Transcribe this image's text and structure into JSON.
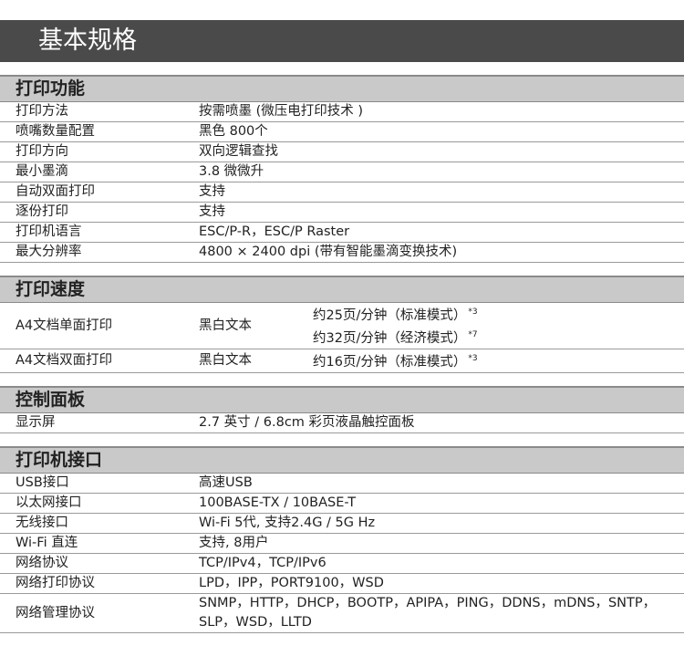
{
  "header": {
    "title": "基本规格"
  },
  "sections": [
    {
      "title": "打印功能",
      "rows": [
        {
          "label": "打印方法",
          "value": "按需喷墨 (微压电打印技术 )"
        },
        {
          "label": "喷嘴数量配置",
          "value": "黑色 800个"
        },
        {
          "label": "打印方向",
          "value": "双向逻辑查找"
        },
        {
          "label": "最小墨滴",
          "value": "3.8 微微升"
        },
        {
          "label": "自动双面打印",
          "value": "支持"
        },
        {
          "label": "逐份打印",
          "value": "支持"
        },
        {
          "label": "打印机语言",
          "value": "ESC/P-R，ESC/P Raster"
        },
        {
          "label": "最大分辨率",
          "value": "4800 × 2400 dpi (带有智能墨滴变换技术)"
        }
      ]
    },
    {
      "title": "打印速度",
      "rows": [
        {
          "label": "A4文档单面打印",
          "value": "黑白文本",
          "items": [
            {
              "text": "约25页/分钟（标准模式）",
              "note": "*3"
            },
            {
              "text": "约32页/分钟（经济模式）",
              "note": "*7"
            }
          ]
        },
        {
          "label": "A4文档双面打印",
          "value": "黑白文本",
          "items": [
            {
              "text": "约16页/分钟（标准模式）",
              "note": "*3"
            }
          ]
        }
      ]
    },
    {
      "title": "控制面板",
      "rows": [
        {
          "label": "显示屏",
          "value": "2.7 英寸 / 6.8cm 彩页液晶触控面板"
        }
      ]
    },
    {
      "title": "打印机接口",
      "rows": [
        {
          "label": "USB接口",
          "value": "高速USB"
        },
        {
          "label": "以太网接口",
          "value": "100BASE-TX / 10BASE-T"
        },
        {
          "label": "无线接口",
          "value": "Wi-Fi 5代, 支持2.4G / 5G Hz"
        },
        {
          "label": "Wi-Fi 直连",
          "value": "支持, 8用户"
        },
        {
          "label": "网络协议",
          "value": "TCP/IPv4，TCP/IPv6"
        },
        {
          "label": "网络打印协议",
          "value": "LPD，IPP，PORT9100，WSD"
        },
        {
          "label": "网络管理协议",
          "value": "SNMP，HTTP，DHCP，BOOTP，APIPA，PING，DDNS，mDNS，SNTP，SLP，WSD，LLTD"
        }
      ]
    }
  ]
}
